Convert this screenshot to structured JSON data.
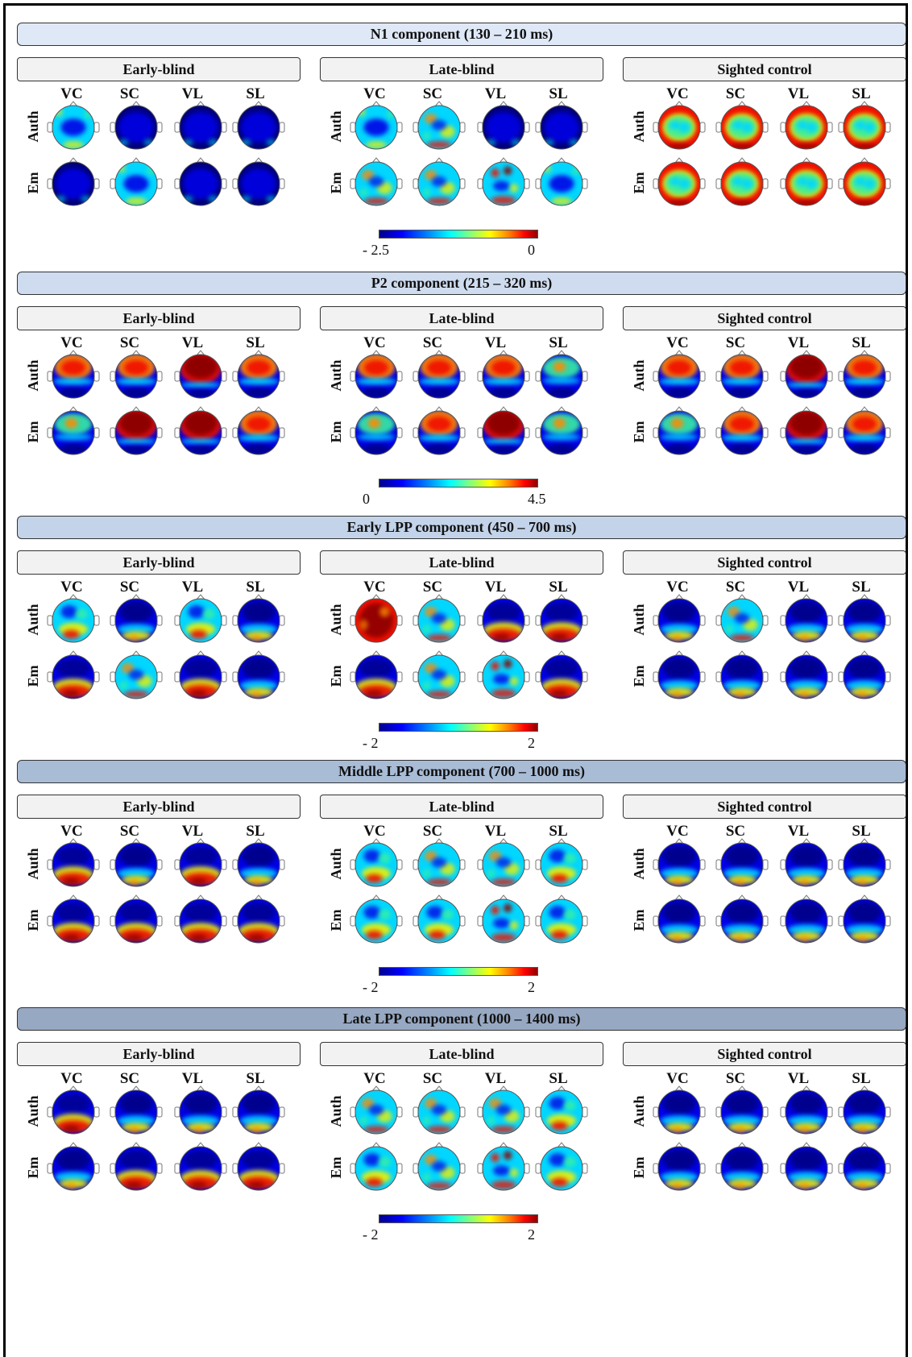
{
  "sections": [
    {
      "title": "N1 component (130 – 210 ms)",
      "bar_color": "#dfe8f6",
      "colorbar_min": "- 2.5",
      "colorbar_max": "0",
      "groups": [
        {
          "name": "Early-blind",
          "cols": [
            "VC",
            "SC",
            "VL",
            "SL"
          ],
          "rows": [
            "Auth",
            "Em"
          ],
          "maps": [
            [
              "cool",
              "deep",
              "deep",
              "deep"
            ],
            [
              "deep",
              "cool",
              "deep",
              "deep"
            ]
          ]
        },
        {
          "name": "Late-blind",
          "cols": [
            "VC",
            "SC",
            "VL",
            "SL"
          ],
          "rows": [
            "Auth",
            "Em"
          ],
          "maps": [
            [
              "cool",
              "mixed",
              "deep",
              "deep"
            ],
            [
              "mixed",
              "mixed",
              "speckle",
              "cool"
            ]
          ]
        },
        {
          "name": "Sighted control",
          "cols": [
            "VC",
            "SC",
            "VL",
            "SL"
          ],
          "rows": [
            "Auth",
            "Em"
          ],
          "maps": [
            [
              "ring",
              "ring",
              "ring",
              "ring"
            ],
            [
              "ring",
              "ring",
              "ring",
              "ring"
            ]
          ]
        }
      ]
    },
    {
      "title": "P2 component (215 – 320 ms)",
      "bar_color": "#cfdcef",
      "colorbar_min": "0",
      "colorbar_max": "4.5",
      "groups": [
        {
          "name": "Early-blind",
          "cols": [
            "VC",
            "SC",
            "VL",
            "SL"
          ],
          "rows": [
            "Auth",
            "Em"
          ],
          "maps": [
            [
              "warmtop",
              "warmtop",
              "hottop",
              "warmtop"
            ],
            [
              "mixtop",
              "hottop",
              "hottop",
              "warmtop"
            ]
          ]
        },
        {
          "name": "Late-blind",
          "cols": [
            "VC",
            "SC",
            "VL",
            "SL"
          ],
          "rows": [
            "Auth",
            "Em"
          ],
          "maps": [
            [
              "warmtop",
              "warmtop",
              "warmtop",
              "mixtop"
            ],
            [
              "mixtop",
              "warmtop",
              "hottop",
              "mixtop"
            ]
          ]
        },
        {
          "name": "Sighted control",
          "cols": [
            "VC",
            "SC",
            "VL",
            "SL"
          ],
          "rows": [
            "Auth",
            "Em"
          ],
          "maps": [
            [
              "warmtop",
              "warmtop",
              "hottop",
              "warmtop"
            ],
            [
              "mixtop",
              "warmtop",
              "hottop",
              "warmtop"
            ]
          ]
        }
      ]
    },
    {
      "title": "Early LPP component (450 – 700 ms)",
      "bar_color": "#c3d3ea",
      "colorbar_min": "- 2",
      "colorbar_max": "2",
      "groups": [
        {
          "name": "Early-blind",
          "cols": [
            "VC",
            "SC",
            "VL",
            "SL"
          ],
          "rows": [
            "Auth",
            "Em"
          ],
          "maps": [
            [
              "mixbot",
              "coolbot",
              "mixbot",
              "coolbot"
            ],
            [
              "warmbot",
              "mixed",
              "warmbot",
              "coolbot"
            ]
          ]
        },
        {
          "name": "Late-blind",
          "cols": [
            "VC",
            "SC",
            "VL",
            "SL"
          ],
          "rows": [
            "Auth",
            "Em"
          ],
          "maps": [
            [
              "hot",
              "mixed",
              "warmbot",
              "warmbot"
            ],
            [
              "warmbot",
              "mixed",
              "speckle",
              "warmbot"
            ]
          ]
        },
        {
          "name": "Sighted control",
          "cols": [
            "VC",
            "SC",
            "VL",
            "SL"
          ],
          "rows": [
            "Auth",
            "Em"
          ],
          "maps": [
            [
              "coolbot",
              "mixed",
              "coolbot",
              "coolbot"
            ],
            [
              "coolbot",
              "coolbot",
              "coolbot",
              "coolbot"
            ]
          ]
        }
      ]
    },
    {
      "title": "Middle LPP component (700 – 1000 ms)",
      "bar_color": "#a9bcd6",
      "colorbar_min": "- 2",
      "colorbar_max": "2",
      "groups": [
        {
          "name": "Early-blind",
          "cols": [
            "VC",
            "SC",
            "VL",
            "SL"
          ],
          "rows": [
            "Auth",
            "Em"
          ],
          "maps": [
            [
              "warmbot",
              "coolbot",
              "warmbot",
              "coolbot"
            ],
            [
              "warmbot",
              "warmbot",
              "warmbot",
              "warmbot"
            ]
          ]
        },
        {
          "name": "Late-blind",
          "cols": [
            "VC",
            "SC",
            "VL",
            "SL"
          ],
          "rows": [
            "Auth",
            "Em"
          ],
          "maps": [
            [
              "mixbot",
              "mixed",
              "mixed",
              "mixbot"
            ],
            [
              "mixbot",
              "mixbot",
              "speckle",
              "mixbot"
            ]
          ]
        },
        {
          "name": "Sighted control",
          "cols": [
            "VC",
            "SC",
            "VL",
            "SL"
          ],
          "rows": [
            "Auth",
            "Em"
          ],
          "maps": [
            [
              "coolbot",
              "coolbot",
              "coolbot",
              "coolbot"
            ],
            [
              "coolbot",
              "coolbot",
              "coolbot",
              "coolbot"
            ]
          ]
        }
      ]
    },
    {
      "title": "Late LPP component (1000 – 1400 ms)",
      "bar_color": "#97a8c2",
      "colorbar_min": "- 2",
      "colorbar_max": "2",
      "groups": [
        {
          "name": "Early-blind",
          "cols": [
            "VC",
            "SC",
            "VL",
            "SL"
          ],
          "rows": [
            "Auth",
            "Em"
          ],
          "maps": [
            [
              "warmbot",
              "coolbot",
              "coolbot",
              "coolbot"
            ],
            [
              "coolbot",
              "warmbot",
              "warmbot",
              "warmbot"
            ]
          ]
        },
        {
          "name": "Late-blind",
          "cols": [
            "VC",
            "SC",
            "VL",
            "SL"
          ],
          "rows": [
            "Auth",
            "Em"
          ],
          "maps": [
            [
              "mixed",
              "mixed",
              "mixed",
              "mixbot"
            ],
            [
              "mixbot",
              "mixed",
              "speckle",
              "mixbot"
            ]
          ]
        },
        {
          "name": "Sighted control",
          "cols": [
            "VC",
            "SC",
            "VL",
            "SL"
          ],
          "rows": [
            "Auth",
            "Em"
          ],
          "maps": [
            [
              "coolbot",
              "coolbot",
              "coolbot",
              "coolbot"
            ],
            [
              "coolbot",
              "coolbot",
              "coolbot",
              "coolbot"
            ]
          ]
        }
      ]
    }
  ]
}
